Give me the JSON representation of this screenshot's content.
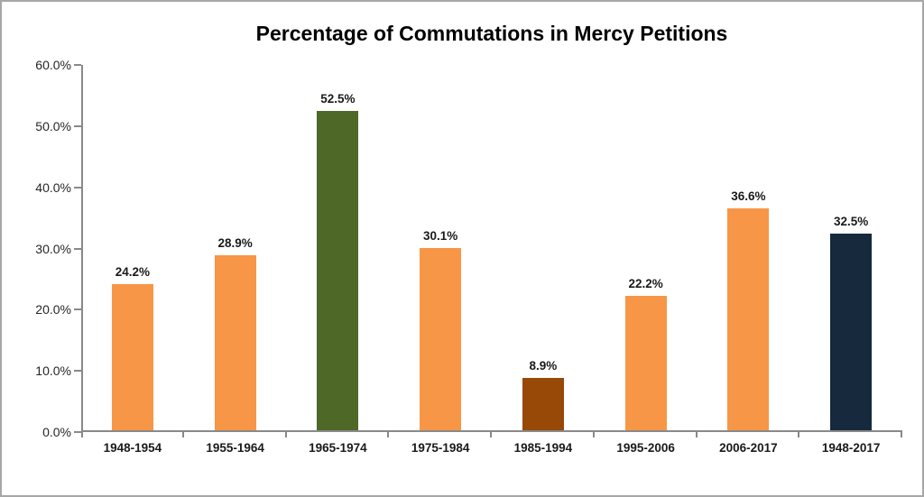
{
  "chart_data": {
    "type": "bar",
    "title": "Percentage of Commutations in Mercy Petitions",
    "categories": [
      "1948-1954",
      "1955-1964",
      "1965-1974",
      "1975-1984",
      "1985-1994",
      "1995-2006",
      "2006-2017",
      "1948-2017"
    ],
    "values": [
      24.2,
      28.9,
      52.5,
      30.1,
      8.9,
      22.2,
      36.6,
      32.5
    ],
    "value_labels": [
      "24.2%",
      "28.9%",
      "52.5%",
      "30.1%",
      "8.9%",
      "22.2%",
      "36.6%",
      "32.5%"
    ],
    "bar_colors": [
      "#F79646",
      "#F79646",
      "#4D6827",
      "#F79646",
      "#984807",
      "#F79646",
      "#F79646",
      "#16293D"
    ],
    "xlabel": "",
    "ylabel": "",
    "ylim": [
      0,
      60
    ],
    "yticks": [
      0,
      10,
      20,
      30,
      40,
      50,
      60
    ],
    "ytick_labels": [
      "0.0%",
      "10.0%",
      "20.0%",
      "30.0%",
      "40.0%",
      "50.0%",
      "60.0%"
    ],
    "grid": false,
    "legend": false,
    "colors": {
      "axis": "#898989",
      "frame_border": "#A7A7A7",
      "background": "#FFFFFF",
      "title_text": "#000000",
      "label_text": "#1A1A1A",
      "orange_bar": "#F79646",
      "green_bar": "#4D6827",
      "brown_bar": "#984807",
      "navy_bar": "#16293D"
    }
  }
}
